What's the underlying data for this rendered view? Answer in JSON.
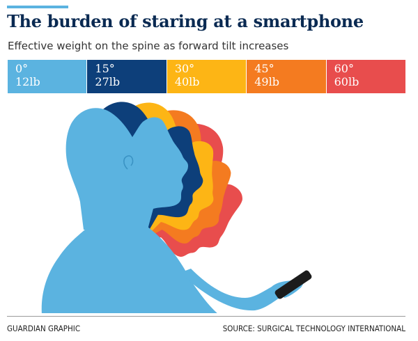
{
  "header": {
    "title": "The burden of staring at a smartphone",
    "subtitle": "Effective weight on the spine as forward tilt increases"
  },
  "legend": [
    {
      "angle": "0°",
      "weight": "12lb",
      "color": "#5bb3e0"
    },
    {
      "angle": "15°",
      "weight": "27lb",
      "color": "#0d3f7a"
    },
    {
      "angle": "30°",
      "weight": "40lb",
      "color": "#fdb515"
    },
    {
      "angle": "45°",
      "weight": "49lb",
      "color": "#f47b20"
    },
    {
      "angle": "60°",
      "weight": "60lb",
      "color": "#e84d4d"
    }
  ],
  "footer": {
    "credit": "GUARDIAN GRAPHIC",
    "source": "SOURCE: SURGICAL TECHNOLOGY INTERNATIONAL"
  },
  "colors": {
    "accent": "#5bb3e0",
    "title": "#0a2a52",
    "phone": "#1c1c1c"
  }
}
